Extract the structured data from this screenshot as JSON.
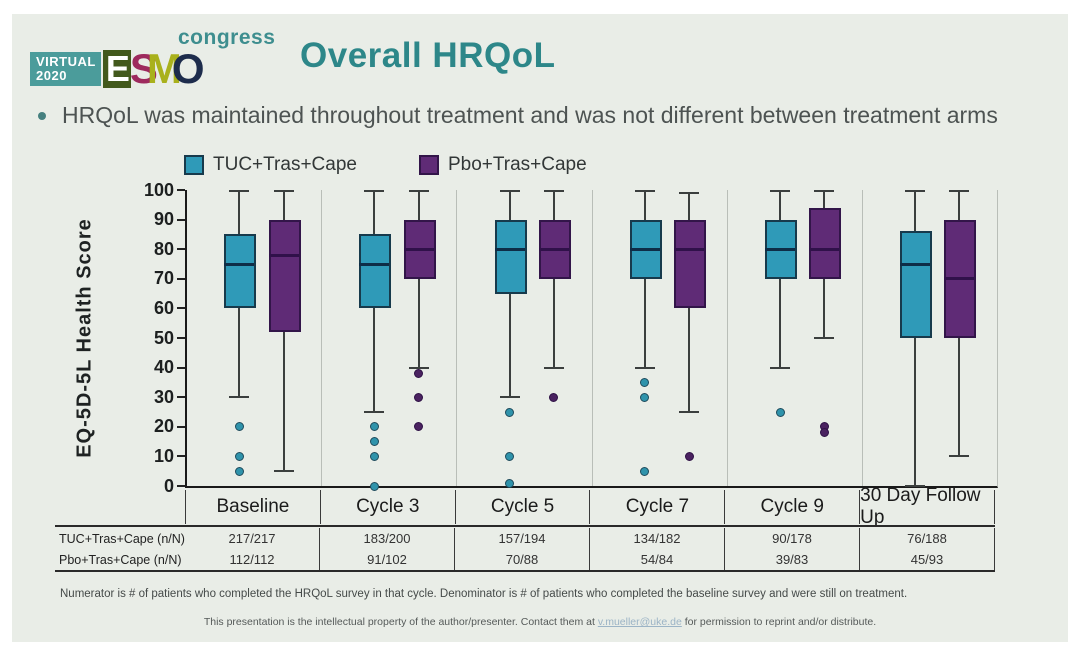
{
  "slide": {
    "logo": {
      "virtual": "VIRTUAL",
      "year": "2020",
      "letters": [
        "E",
        "S",
        "M",
        "O"
      ],
      "congress": "congress"
    },
    "title": "Overall HRQoL",
    "bullet": "HRQoL was maintained throughout treatment and was not different between treatment arms"
  },
  "colors": {
    "accent_teal": "#2d8789",
    "teal_fill": "#2f9ab8",
    "teal_edge": "#173a4c",
    "teal_median": "#0e2d47",
    "purple_fill": "#5f2b76",
    "purple_edge": "#321549",
    "purple_median": "#30114a",
    "whisker": "#3b3f3e",
    "gridline": "#b9beb8",
    "background": "#e9ede7"
  },
  "chart_data": {
    "type": "boxplot",
    "title": "",
    "xlabel": "",
    "ylabel": "EQ-5D-5L Health Score",
    "ylim": [
      0,
      100
    ],
    "y_ticks": [
      0,
      10,
      20,
      30,
      40,
      50,
      60,
      70,
      80,
      90,
      100
    ],
    "grid": "vertical-separators-only",
    "legend_position": "top",
    "categories": [
      "Baseline",
      "Cycle 3",
      "Cycle 5",
      "Cycle 7",
      "Cycle 9",
      "30 Day Follow Up"
    ],
    "series": [
      {
        "name": "TUC+Tras+Cape",
        "fill": "#2f9ab8",
        "edge": "#173a4c",
        "median_color": "#0e2d47",
        "dot_fill": "#2f93ab",
        "dot_edge": "#1e4b5c",
        "boxes": [
          {
            "low": 30,
            "q1": 60,
            "median": 75,
            "q3": 85,
            "high": 100,
            "outliers": [
              20,
              10,
              5
            ]
          },
          {
            "low": 25,
            "q1": 60,
            "median": 75,
            "q3": 85,
            "high": 100,
            "outliers": [
              20,
              15,
              10,
              0
            ]
          },
          {
            "low": 30,
            "q1": 65,
            "median": 80,
            "q3": 90,
            "high": 100,
            "outliers": [
              25,
              10,
              1
            ]
          },
          {
            "low": 40,
            "q1": 70,
            "median": 80,
            "q3": 90,
            "high": 100,
            "outliers": [
              35,
              30,
              5
            ]
          },
          {
            "low": 40,
            "q1": 70,
            "median": 80,
            "q3": 90,
            "high": 100,
            "outliers": [
              25
            ]
          },
          {
            "low": 0,
            "q1": 50,
            "median": 75,
            "q3": 86,
            "high": 100,
            "outliers": []
          }
        ]
      },
      {
        "name": "Pbo+Tras+Cape",
        "fill": "#5f2b76",
        "edge": "#321549",
        "median_color": "#30114a",
        "dot_fill": "#4a2260",
        "dot_edge": "#2e1145",
        "boxes": [
          {
            "low": 5,
            "q1": 52,
            "median": 78,
            "q3": 90,
            "high": 100,
            "outliers": []
          },
          {
            "low": 40,
            "q1": 70,
            "median": 80,
            "q3": 90,
            "high": 100,
            "outliers": [
              38,
              30,
              20
            ]
          },
          {
            "low": 40,
            "q1": 70,
            "median": 80,
            "q3": 90,
            "high": 100,
            "outliers": [
              30
            ]
          },
          {
            "low": 25,
            "q1": 60,
            "median": 80,
            "q3": 90,
            "high": 99,
            "outliers": [
              10
            ]
          },
          {
            "low": 50,
            "q1": 70,
            "median": 80,
            "q3": 94,
            "high": 100,
            "outliers": [
              20,
              18
            ]
          },
          {
            "low": 10,
            "q1": 50,
            "median": 70,
            "q3": 90,
            "high": 100,
            "outliers": []
          }
        ]
      }
    ]
  },
  "table": {
    "rows": [
      {
        "label": "TUC+Tras+Cape (n/N)",
        "values": [
          "217/217",
          "183/200",
          "157/194",
          "134/182",
          "90/178",
          "76/188"
        ]
      },
      {
        "label": "Pbo+Tras+Cape (n/N)",
        "values": [
          "112/112",
          "91/102",
          "70/88",
          "54/84",
          "39/83",
          "45/93"
        ]
      }
    ]
  },
  "footnote": "Numerator is # of patients who completed the HRQoL survey in that cycle. Denominator is # of patients who completed the baseline survey and were still on treatment.",
  "disclaimer": {
    "prefix": "This presentation is the intellectual property of the author/presenter. Contact them at ",
    "email": "v.mueller@uke.de",
    "suffix": " for permission to reprint and/or distribute."
  }
}
